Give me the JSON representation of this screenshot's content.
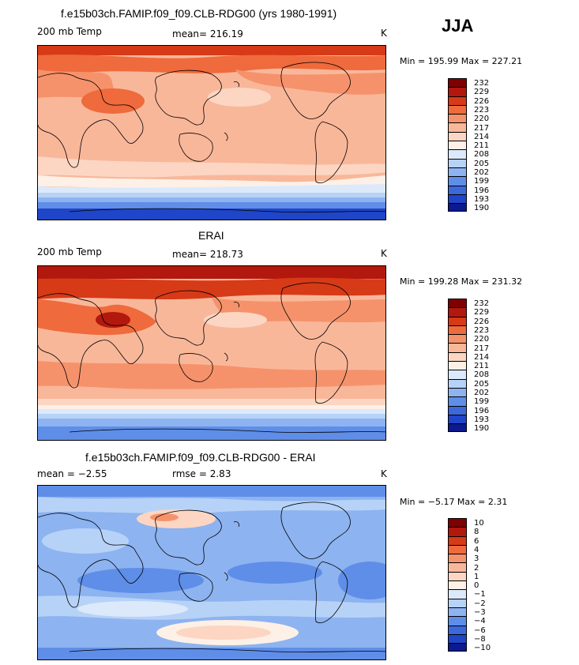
{
  "season": "JJA",
  "panels": [
    {
      "title": "f.e15b03ch.FAMIP.f09_f09.CLB-RDG00 (yrs 1980-1991)",
      "variable": "200 mb Temp",
      "stat_text": "mean=  216.19",
      "units": "K",
      "range_text": "Min = 195.99  Max = 227.21",
      "levels": [
        "232",
        "229",
        "226",
        "223",
        "220",
        "217",
        "214",
        "211",
        "208",
        "205",
        "202",
        "199",
        "196",
        "193",
        "190"
      ],
      "colors": [
        "#7f0000",
        "#b2180e",
        "#d73a17",
        "#ef6a3c",
        "#f6926b",
        "#f9b79a",
        "#fcd6c2",
        "#fdf0e6",
        "#dce9fb",
        "#b7d2f7",
        "#8db3f0",
        "#5f8ee8",
        "#3c68dc",
        "#1f45c8",
        "#0b1a8f"
      ]
    },
    {
      "title": "ERAI",
      "variable": "200 mb Temp",
      "stat_text": "mean=  218.73",
      "units": "K",
      "range_text": "Min = 199.28  Max = 231.32",
      "levels": [
        "232",
        "229",
        "226",
        "223",
        "220",
        "217",
        "214",
        "211",
        "208",
        "205",
        "202",
        "199",
        "196",
        "193",
        "190"
      ],
      "colors": [
        "#7f0000",
        "#b2180e",
        "#d73a17",
        "#ef6a3c",
        "#f6926b",
        "#f9b79a",
        "#fcd6c2",
        "#fdf0e6",
        "#dce9fb",
        "#b7d2f7",
        "#8db3f0",
        "#5f8ee8",
        "#3c68dc",
        "#1f45c8",
        "#0b1a8f"
      ]
    },
    {
      "title": "f.e15b03ch.FAMIP.f09_f09.CLB-RDG00 - ERAI",
      "stat_text": "mean =   −2.55",
      "stat2_text": "rmse =    2.83",
      "units": "K",
      "range_text": "Min =  −5.17  Max =    2.31",
      "levels": [
        "10",
        "8",
        "6",
        "4",
        "3",
        "2",
        "1",
        "0",
        "−1",
        "−2",
        "−3",
        "−4",
        "−6",
        "−8",
        "−10"
      ],
      "colors": [
        "#7f0000",
        "#b2180e",
        "#d73a17",
        "#ef6a3c",
        "#f6926b",
        "#f9b79a",
        "#fcd6c2",
        "#fdf0e6",
        "#dce9fb",
        "#b7d2f7",
        "#8db3f0",
        "#5f8ee8",
        "#3c68dc",
        "#1f45c8",
        "#0b1a8f"
      ]
    }
  ]
}
